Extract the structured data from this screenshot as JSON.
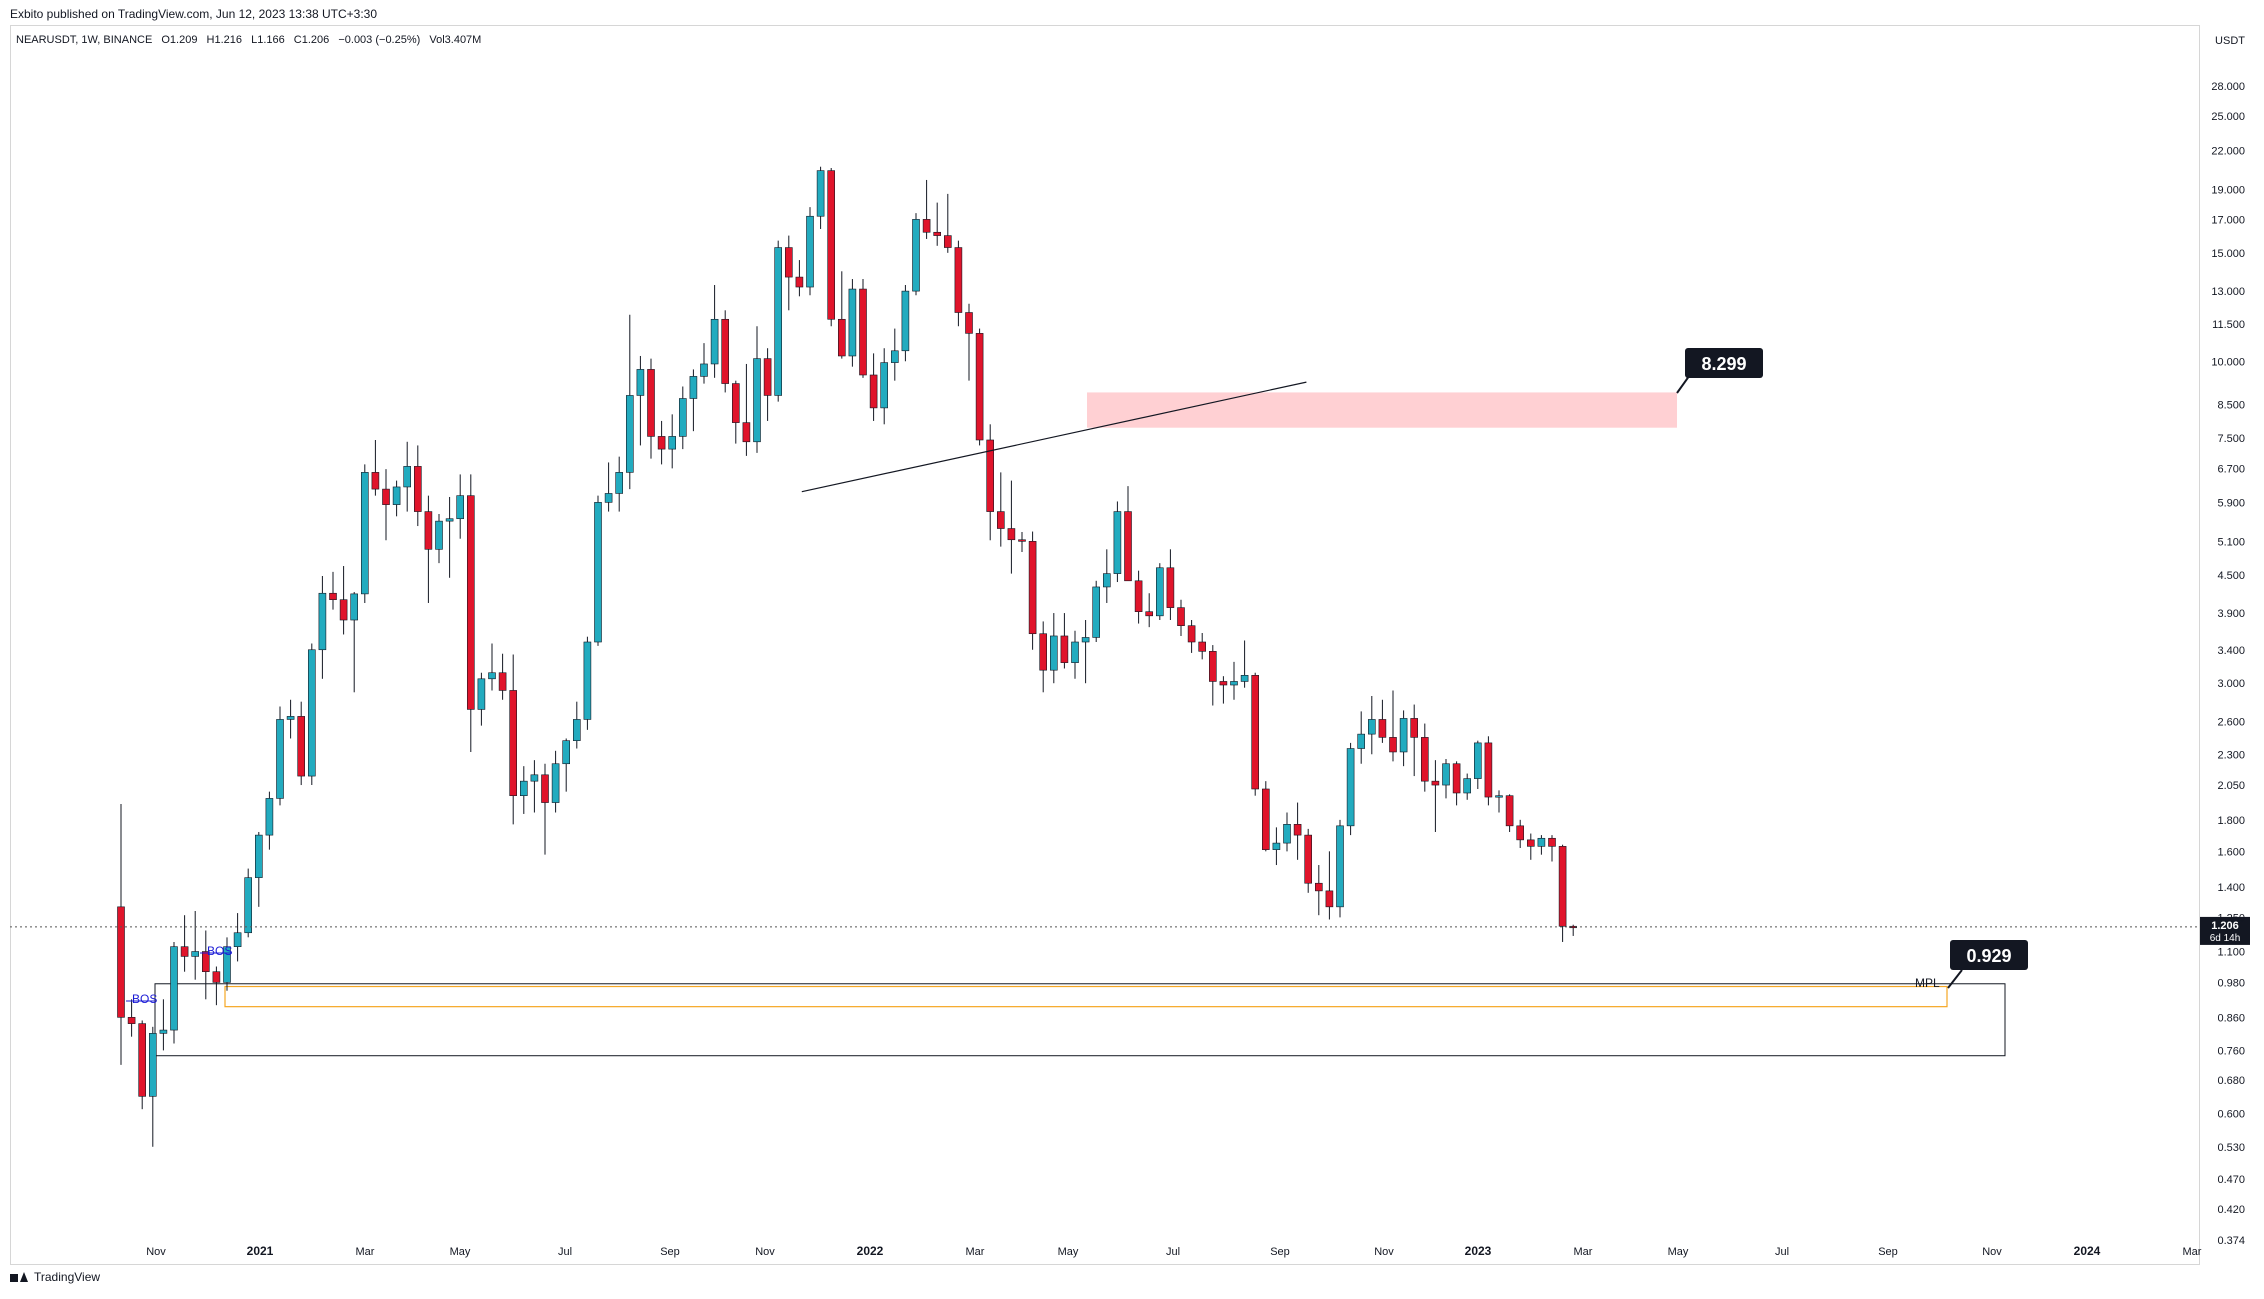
{
  "publisher": {
    "text": "Exbito published on TradingView.com, Jun 12, 2023 13:38 UTC+3:30"
  },
  "header": {
    "symbol": "NEARUSDT, 1W, BINANCE",
    "open": "O1.209",
    "high": "H1.216",
    "low": "L1.166",
    "close": "C1.206",
    "change": "−0.003 (−0.25%)",
    "volume": "Vol3.407M"
  },
  "footer": {
    "brand": "TradingView"
  },
  "colors": {
    "up": "#22ABBF",
    "down": "#E0142B",
    "zone": "#FFD0D3",
    "orange": "#F5A623",
    "axis_text": "#131722"
  },
  "chart_data": {
    "type": "candlestick",
    "y_scale": "log",
    "y_unit": "USDT",
    "ylim": [
      0.374,
      33.0
    ],
    "y_ticks": [
      "28.000",
      "25.000",
      "22.000",
      "19.000",
      "17.000",
      "15.000",
      "13.000",
      "11.500",
      "10.000",
      "8.500",
      "7.500",
      "6.700",
      "5.900",
      "5.100",
      "4.500",
      "3.900",
      "3.400",
      "3.000",
      "2.600",
      "2.300",
      "2.050",
      "1.800",
      "1.600",
      "1.400",
      "1.250",
      "1.100",
      "0.980",
      "0.860",
      "0.760",
      "0.680",
      "0.600",
      "0.530",
      "0.470",
      "0.420",
      "0.374"
    ],
    "x_ticks": [
      "Nov",
      "2021",
      "Mar",
      "May",
      "Jul",
      "Sep",
      "Nov",
      "2022",
      "Mar",
      "May",
      "Jul",
      "Sep",
      "Nov",
      "2023",
      "Mar",
      "May",
      "Jul",
      "Sep",
      "Nov",
      "2024",
      "Mar"
    ],
    "candles": [
      [
        1.3,
        1.91,
        0.72,
        0.86
      ],
      [
        0.86,
        0.92,
        0.8,
        0.84
      ],
      [
        0.84,
        0.85,
        0.61,
        0.64
      ],
      [
        0.64,
        0.83,
        0.53,
        0.81
      ],
      [
        0.81,
        0.92,
        0.76,
        0.82
      ],
      [
        0.82,
        1.14,
        0.78,
        1.12
      ],
      [
        1.12,
        1.26,
        1.02,
        1.08
      ],
      [
        1.08,
        1.28,
        0.99,
        1.1
      ],
      [
        1.1,
        1.19,
        0.92,
        1.02
      ],
      [
        1.02,
        1.04,
        0.9,
        0.98
      ],
      [
        0.98,
        1.16,
        0.95,
        1.12
      ],
      [
        1.12,
        1.27,
        1.06,
        1.18
      ],
      [
        1.18,
        1.5,
        1.16,
        1.45
      ],
      [
        1.45,
        1.72,
        1.3,
        1.7
      ],
      [
        1.7,
        2.0,
        1.61,
        1.95
      ],
      [
        1.95,
        2.75,
        1.9,
        2.62
      ],
      [
        2.62,
        2.82,
        2.44,
        2.65
      ],
      [
        2.65,
        2.8,
        2.05,
        2.12
      ],
      [
        2.12,
        3.48,
        2.05,
        3.4
      ],
      [
        3.4,
        4.48,
        3.05,
        4.2
      ],
      [
        4.2,
        4.55,
        3.95,
        4.1
      ],
      [
        4.1,
        4.65,
        3.6,
        3.8
      ],
      [
        3.8,
        4.22,
        2.9,
        4.19
      ],
      [
        4.19,
        6.8,
        4.05,
        6.6
      ],
      [
        6.6,
        7.45,
        6.05,
        6.2
      ],
      [
        6.2,
        6.68,
        5.12,
        5.85
      ],
      [
        5.85,
        6.4,
        5.6,
        6.25
      ],
      [
        6.25,
        7.4,
        5.7,
        6.75
      ],
      [
        6.75,
        7.3,
        5.4,
        5.7
      ],
      [
        5.7,
        6.05,
        4.05,
        4.95
      ],
      [
        4.95,
        5.65,
        4.7,
        5.5
      ],
      [
        5.5,
        6.02,
        4.45,
        5.55
      ],
      [
        5.55,
        6.55,
        5.15,
        6.05
      ],
      [
        6.05,
        6.55,
        2.32,
        2.72
      ],
      [
        2.72,
        3.12,
        2.56,
        3.05
      ],
      [
        3.05,
        3.48,
        2.92,
        3.12
      ],
      [
        3.12,
        3.35,
        2.82,
        2.92
      ],
      [
        2.92,
        3.34,
        1.77,
        1.97
      ],
      [
        1.97,
        2.2,
        1.84,
        2.08
      ],
      [
        2.08,
        2.25,
        1.85,
        2.13
      ],
      [
        2.13,
        2.22,
        1.58,
        1.92
      ],
      [
        1.92,
        2.33,
        1.85,
        2.22
      ],
      [
        2.22,
        2.44,
        2.0,
        2.42
      ],
      [
        2.42,
        2.8,
        2.35,
        2.62
      ],
      [
        2.62,
        3.57,
        2.52,
        3.5
      ],
      [
        3.5,
        6.05,
        3.45,
        5.9
      ],
      [
        5.9,
        6.85,
        5.7,
        6.1
      ],
      [
        6.1,
        7.0,
        5.7,
        6.6
      ],
      [
        6.6,
        11.9,
        6.2,
        8.8
      ],
      [
        8.8,
        10.2,
        7.3,
        9.7
      ],
      [
        9.7,
        10.1,
        6.95,
        7.55
      ],
      [
        7.55,
        8.0,
        6.8,
        7.2
      ],
      [
        7.2,
        8.2,
        6.7,
        7.55
      ],
      [
        7.55,
        9.1,
        7.2,
        8.7
      ],
      [
        8.7,
        9.7,
        7.7,
        9.45
      ],
      [
        9.45,
        10.7,
        9.2,
        9.9
      ],
      [
        9.9,
        13.3,
        9.4,
        11.7
      ],
      [
        11.7,
        12.1,
        8.9,
        9.2
      ],
      [
        9.2,
        9.3,
        7.35,
        7.95
      ],
      [
        7.95,
        9.9,
        7.02,
        7.4
      ],
      [
        7.4,
        11.4,
        7.1,
        10.1
      ],
      [
        10.1,
        10.5,
        8.0,
        8.8
      ],
      [
        8.8,
        15.7,
        8.6,
        15.3
      ],
      [
        15.3,
        16.0,
        12.1,
        13.7
      ],
      [
        13.7,
        14.6,
        12.75,
        13.2
      ],
      [
        13.2,
        17.8,
        12.8,
        17.2
      ],
      [
        17.2,
        20.7,
        16.4,
        20.4
      ],
      [
        20.4,
        20.6,
        11.4,
        11.7
      ],
      [
        11.7,
        14.0,
        10.1,
        10.2
      ],
      [
        10.2,
        13.6,
        9.8,
        13.1
      ],
      [
        13.1,
        13.6,
        9.4,
        9.5
      ],
      [
        9.5,
        10.3,
        8.0,
        8.4
      ],
      [
        8.4,
        10.5,
        7.9,
        9.95
      ],
      [
        9.95,
        11.3,
        9.3,
        10.4
      ],
      [
        10.4,
        13.3,
        10.0,
        13.0
      ],
      [
        13.0,
        17.4,
        12.8,
        17.0
      ],
      [
        17.0,
        19.7,
        15.8,
        16.2
      ],
      [
        16.2,
        18.1,
        15.4,
        16.0
      ],
      [
        16.0,
        18.7,
        15.0,
        15.3
      ],
      [
        15.3,
        15.7,
        11.4,
        12.0
      ],
      [
        12.0,
        12.4,
        9.3,
        11.1
      ],
      [
        11.1,
        11.3,
        7.3,
        7.45
      ],
      [
        7.45,
        7.9,
        5.12,
        5.7
      ],
      [
        5.7,
        6.6,
        5.0,
        5.35
      ],
      [
        5.35,
        6.4,
        4.52,
        5.13
      ],
      [
        5.13,
        5.28,
        4.9,
        5.1
      ],
      [
        5.1,
        5.29,
        3.4,
        3.61
      ],
      [
        3.61,
        3.78,
        2.9,
        3.15
      ],
      [
        3.15,
        3.9,
        3.0,
        3.58
      ],
      [
        3.58,
        3.9,
        3.17,
        3.24
      ],
      [
        3.24,
        3.65,
        3.05,
        3.5
      ],
      [
        3.5,
        3.8,
        3.0,
        3.56
      ],
      [
        3.56,
        4.4,
        3.5,
        4.3
      ],
      [
        4.3,
        4.95,
        4.05,
        4.52
      ],
      [
        4.52,
        5.92,
        4.38,
        5.7
      ],
      [
        5.7,
        6.27,
        4.4,
        4.4
      ],
      [
        4.4,
        4.57,
        3.75,
        3.92
      ],
      [
        3.92,
        4.2,
        3.7,
        3.86
      ],
      [
        3.86,
        4.7,
        3.8,
        4.62
      ],
      [
        4.62,
        4.95,
        3.8,
        3.98
      ],
      [
        3.98,
        4.1,
        3.58,
        3.72
      ],
      [
        3.72,
        3.8,
        3.36,
        3.5
      ],
      [
        3.5,
        3.62,
        3.28,
        3.38
      ],
      [
        3.38,
        3.46,
        2.76,
        3.02
      ],
      [
        3.02,
        3.08,
        2.78,
        2.98
      ],
      [
        2.98,
        3.25,
        2.82,
        3.02
      ],
      [
        3.02,
        3.52,
        2.95,
        3.09
      ],
      [
        3.09,
        3.12,
        1.97,
        2.02
      ],
      [
        2.02,
        2.08,
        1.6,
        1.61
      ],
      [
        1.61,
        1.75,
        1.52,
        1.65
      ],
      [
        1.65,
        1.85,
        1.6,
        1.77
      ],
      [
        1.77,
        1.92,
        1.55,
        1.7
      ],
      [
        1.7,
        1.74,
        1.37,
        1.42
      ],
      [
        1.42,
        1.52,
        1.26,
        1.38
      ],
      [
        1.38,
        1.6,
        1.24,
        1.3
      ],
      [
        1.3,
        1.8,
        1.25,
        1.76
      ],
      [
        1.76,
        2.4,
        1.7,
        2.35
      ],
      [
        2.35,
        2.7,
        2.22,
        2.48
      ],
      [
        2.48,
        2.86,
        2.3,
        2.62
      ],
      [
        2.62,
        2.82,
        2.4,
        2.45
      ],
      [
        2.45,
        2.92,
        2.24,
        2.32
      ],
      [
        2.32,
        2.71,
        2.2,
        2.63
      ],
      [
        2.63,
        2.77,
        2.12,
        2.45
      ],
      [
        2.45,
        2.58,
        2.0,
        2.08
      ],
      [
        2.08,
        2.25,
        1.72,
        2.05
      ],
      [
        2.05,
        2.26,
        1.95,
        2.22
      ],
      [
        2.22,
        2.24,
        1.9,
        1.99
      ],
      [
        1.99,
        2.14,
        1.94,
        2.1
      ],
      [
        2.1,
        2.42,
        2.02,
        2.4
      ],
      [
        2.4,
        2.46,
        1.9,
        1.96
      ],
      [
        1.96,
        2.01,
        1.85,
        1.97
      ],
      [
        1.97,
        1.98,
        1.72,
        1.76
      ],
      [
        1.76,
        1.8,
        1.62,
        1.67
      ],
      [
        1.67,
        1.71,
        1.55,
        1.63
      ],
      [
        1.63,
        1.7,
        1.58,
        1.68
      ],
      [
        1.68,
        1.7,
        1.54,
        1.63
      ],
      [
        1.63,
        1.64,
        1.14,
        1.209
      ],
      [
        1.209,
        1.216,
        1.166,
        1.206
      ]
    ],
    "annotations": {
      "labels": [
        "8.299",
        "0.929",
        "BOS",
        "BOS",
        "MPL"
      ],
      "current_price": "1.206",
      "countdown": "6d 14h",
      "resistance_zone": [
        7.8,
        8.9
      ],
      "support_box": [
        0.745,
        0.975
      ],
      "mpl_box": [
        0.895,
        0.965
      ],
      "trendline": [
        [
          68,
          6.14
        ],
        [
          109,
          9.25
        ]
      ]
    }
  }
}
